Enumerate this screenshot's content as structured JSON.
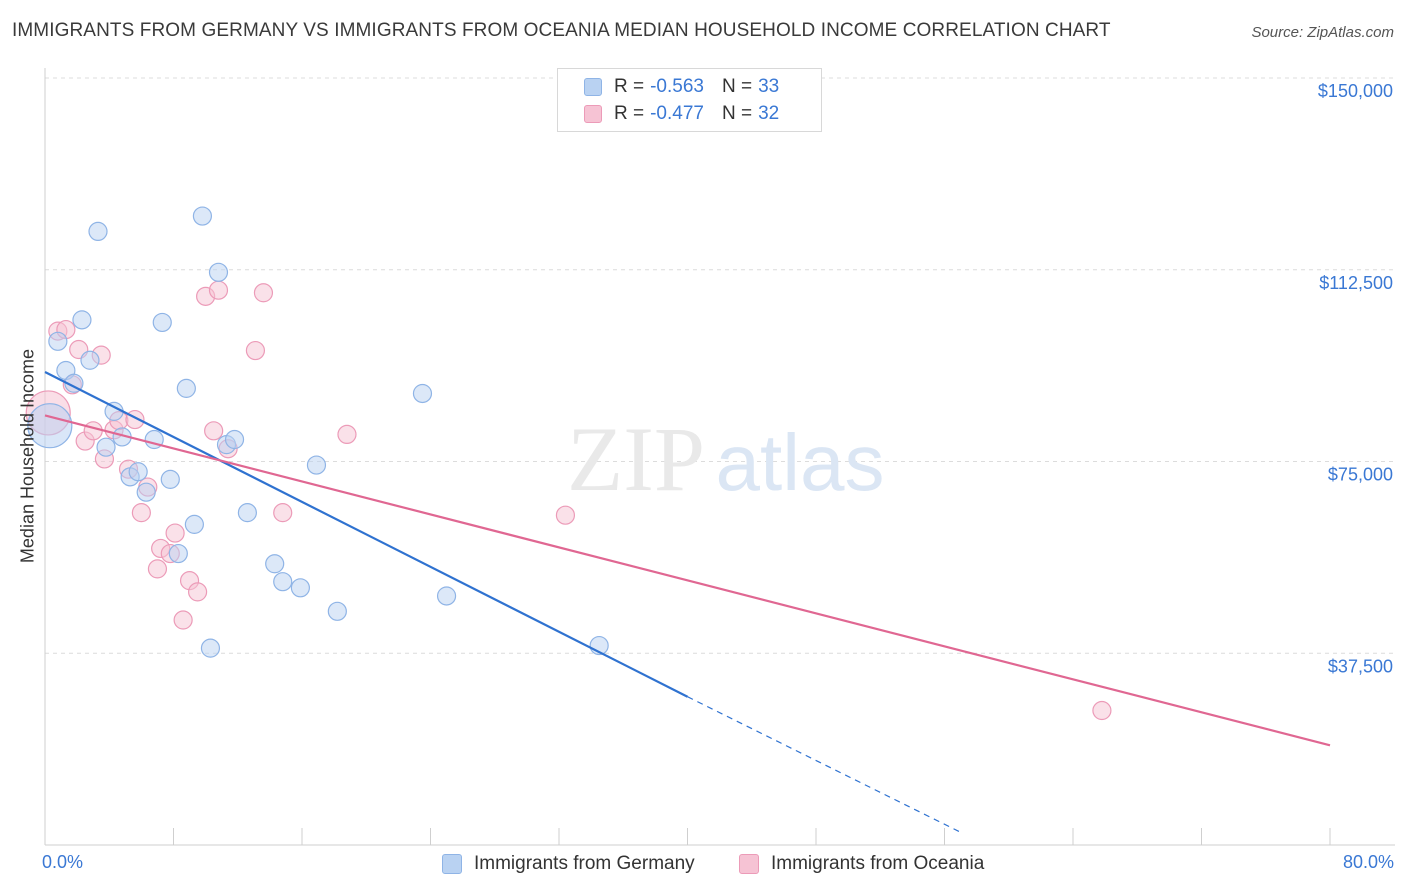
{
  "title": "IMMIGRANTS FROM GERMANY VS IMMIGRANTS FROM OCEANIA MEDIAN HOUSEHOLD INCOME CORRELATION CHART",
  "source": "Source: ZipAtlas.com",
  "watermark": {
    "zip": "ZIP",
    "atlas": "atlas"
  },
  "legend": {
    "r_label": "R =",
    "n_label": "N =",
    "entries": [
      {
        "r": "-0.563",
        "n": "33"
      },
      {
        "r": "-0.477",
        "n": "32"
      }
    ]
  },
  "colors": {
    "germany_fill": "#b9d2f2",
    "germany_stroke": "#8fb4e6",
    "germany_line": "#2f72d0",
    "oceania_fill": "#f6c3d4",
    "oceania_stroke": "#ec9bb8",
    "oceania_line": "#e06792",
    "grid": "#dcdcdc",
    "axis_text": "#3a78d4"
  },
  "chart_data": {
    "type": "scatter",
    "title": "IMMIGRANTS FROM GERMANY VS IMMIGRANTS FROM OCEANIA MEDIAN HOUSEHOLD INCOME CORRELATION CHART",
    "xlabel": "",
    "ylabel": "Median Household Income",
    "xlim": [
      0,
      80
    ],
    "ylim": [
      0,
      155000
    ],
    "x_tick_labels": [
      "0.0%",
      "80.0%"
    ],
    "y_ticks": [
      37500,
      75000,
      112500,
      150000
    ],
    "y_tick_labels": [
      "$37,500",
      "$75,000",
      "$112,500",
      "$150,000"
    ],
    "grid": true,
    "legend_position": "top-center",
    "series": [
      {
        "name": "Immigrants from Germany",
        "r": -0.563,
        "n": 33,
        "trend": {
          "x_start": 0,
          "y_start": 92500,
          "x_solid_end": 40,
          "y_solid_end": 29000,
          "x_dash_end": 57,
          "y_dash_end": 2500
        },
        "points": [
          {
            "x": 0.3,
            "y": 82000,
            "big": true
          },
          {
            "x": 0.8,
            "y": 98500
          },
          {
            "x": 1.3,
            "y": 92800
          },
          {
            "x": 1.8,
            "y": 90300
          },
          {
            "x": 2.3,
            "y": 102700
          },
          {
            "x": 2.8,
            "y": 94800
          },
          {
            "x": 3.3,
            "y": 120000
          },
          {
            "x": 3.8,
            "y": 77800
          },
          {
            "x": 4.3,
            "y": 84800
          },
          {
            "x": 4.8,
            "y": 79800
          },
          {
            "x": 5.3,
            "y": 72000
          },
          {
            "x": 5.8,
            "y": 73000
          },
          {
            "x": 6.3,
            "y": 69000
          },
          {
            "x": 6.8,
            "y": 79300
          },
          {
            "x": 7.3,
            "y": 102200
          },
          {
            "x": 7.8,
            "y": 71500
          },
          {
            "x": 8.3,
            "y": 57000
          },
          {
            "x": 8.8,
            "y": 89300
          },
          {
            "x": 9.3,
            "y": 62700
          },
          {
            "x": 9.8,
            "y": 123000
          },
          {
            "x": 10.3,
            "y": 38500
          },
          {
            "x": 10.8,
            "y": 112000
          },
          {
            "x": 11.3,
            "y": 78300
          },
          {
            "x": 11.8,
            "y": 79300
          },
          {
            "x": 12.6,
            "y": 65000
          },
          {
            "x": 14.3,
            "y": 55000
          },
          {
            "x": 14.8,
            "y": 51500
          },
          {
            "x": 15.9,
            "y": 50300
          },
          {
            "x": 16.9,
            "y": 74300
          },
          {
            "x": 18.2,
            "y": 45700
          },
          {
            "x": 23.5,
            "y": 88300
          },
          {
            "x": 25.0,
            "y": 48700
          },
          {
            "x": 34.5,
            "y": 39000
          }
        ]
      },
      {
        "name": "Immigrants from Oceania",
        "r": -0.477,
        "n": 32,
        "trend": {
          "x_start": 0,
          "y_start": 84000,
          "x_end": 80,
          "y_end": 19500
        },
        "points": [
          {
            "x": 0.2,
            "y": 84500,
            "big": true
          },
          {
            "x": 0.8,
            "y": 100500
          },
          {
            "x": 1.3,
            "y": 100800
          },
          {
            "x": 1.7,
            "y": 90000
          },
          {
            "x": 2.1,
            "y": 96900
          },
          {
            "x": 2.5,
            "y": 79000
          },
          {
            "x": 3.0,
            "y": 81000
          },
          {
            "x": 3.5,
            "y": 95800
          },
          {
            "x": 3.7,
            "y": 75500
          },
          {
            "x": 4.3,
            "y": 81200
          },
          {
            "x": 4.6,
            "y": 83000
          },
          {
            "x": 5.2,
            "y": 73500
          },
          {
            "x": 5.6,
            "y": 83200
          },
          {
            "x": 6.0,
            "y": 65000
          },
          {
            "x": 6.4,
            "y": 70000
          },
          {
            "x": 7.0,
            "y": 54000
          },
          {
            "x": 7.2,
            "y": 58000
          },
          {
            "x": 7.8,
            "y": 57000
          },
          {
            "x": 8.1,
            "y": 61000
          },
          {
            "x": 8.6,
            "y": 44000
          },
          {
            "x": 9.0,
            "y": 51700
          },
          {
            "x": 9.5,
            "y": 49500
          },
          {
            "x": 10.0,
            "y": 107300
          },
          {
            "x": 10.5,
            "y": 81000
          },
          {
            "x": 10.8,
            "y": 108500
          },
          {
            "x": 11.4,
            "y": 77500
          },
          {
            "x": 13.1,
            "y": 96700
          },
          {
            "x": 13.6,
            "y": 108000
          },
          {
            "x": 14.8,
            "y": 65000
          },
          {
            "x": 18.8,
            "y": 80300
          },
          {
            "x": 32.4,
            "y": 64500
          },
          {
            "x": 65.8,
            "y": 26300
          }
        ]
      }
    ]
  }
}
